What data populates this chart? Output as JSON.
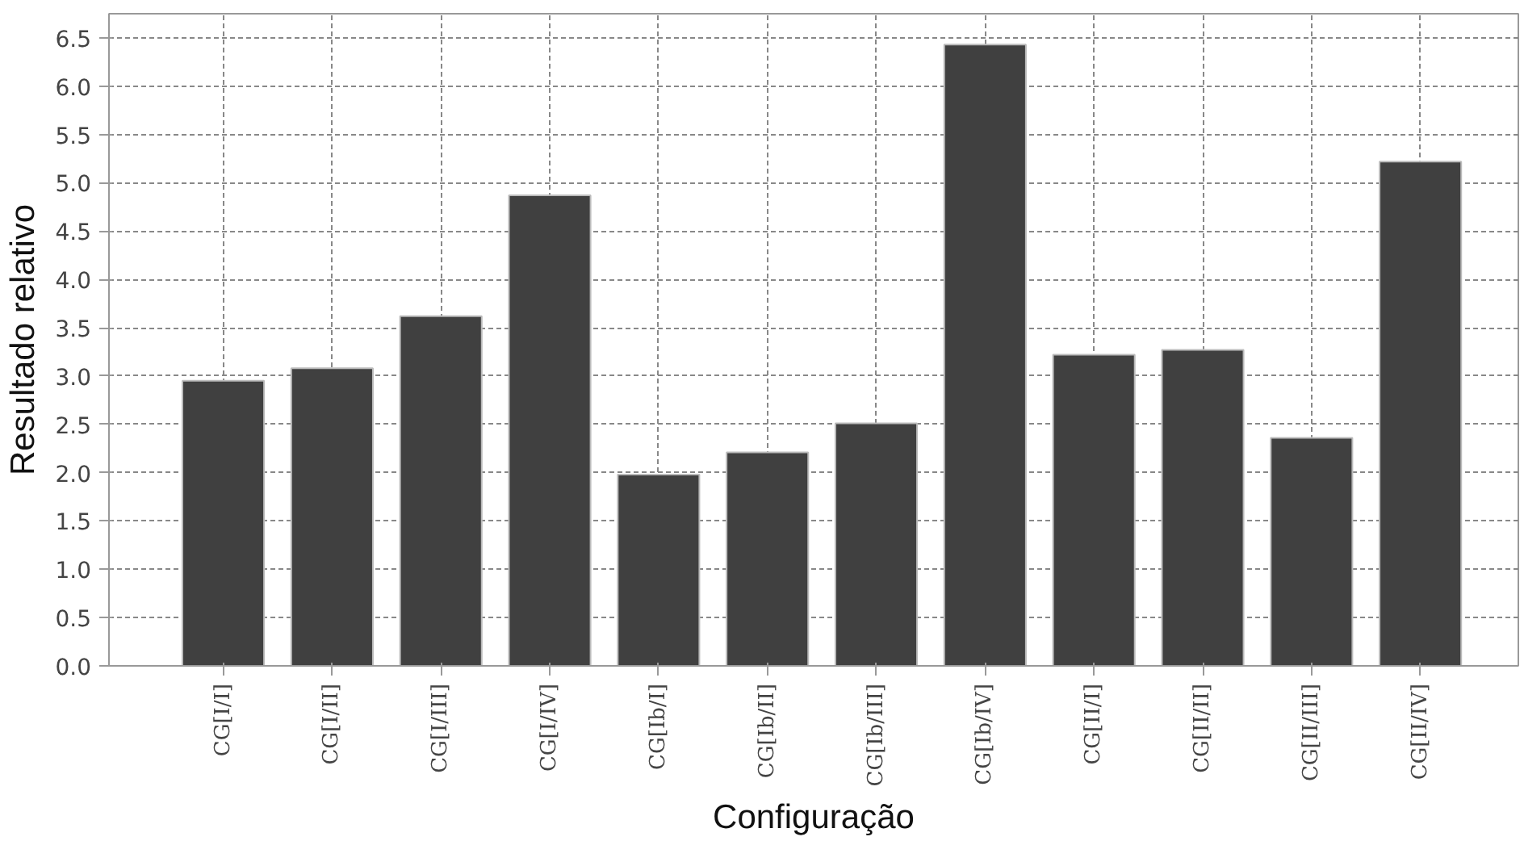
{
  "chart_data": {
    "type": "bar",
    "xlabel": "Configuração",
    "ylabel": "Resultado relativo",
    "categories": [
      "CG[I/I]",
      "CG[I/II]",
      "CG[I/III]",
      "CG[I/IV]",
      "CG[Ib/I]",
      "CG[Ib/II]",
      "CG[Ib/III]",
      "CG[Ib/IV]",
      "CG[II/I]",
      "CG[II/II]",
      "CG[II/III]",
      "CG[II/IV]"
    ],
    "values": [
      2.95,
      3.08,
      3.62,
      4.87,
      1.98,
      2.21,
      2.51,
      6.43,
      3.22,
      3.27,
      2.36,
      5.22
    ],
    "color": "#404040",
    "ylim": [
      0,
      6.75
    ],
    "yticks": [
      {
        "value": 0,
        "label": "0.0"
      },
      {
        "value": 0.5,
        "label": "0.5"
      },
      {
        "value": 1,
        "label": "1.0"
      },
      {
        "value": 1.5,
        "label": "1.5"
      },
      {
        "value": 2,
        "label": "2.0"
      },
      {
        "value": 2.5,
        "label": "2.5"
      },
      {
        "value": 3,
        "label": "3.0"
      },
      {
        "value": 3.5,
        "label": "3.5"
      },
      {
        "value": 4,
        "label": "4.0"
      },
      {
        "value": 4.5,
        "label": "4.5"
      },
      {
        "value": 5,
        "label": "5.0"
      },
      {
        "value": 5.5,
        "label": "5.5"
      },
      {
        "value": 6,
        "label": "6.0"
      },
      {
        "value": 6.5,
        "label": "6.5"
      }
    ],
    "grid": true
  }
}
